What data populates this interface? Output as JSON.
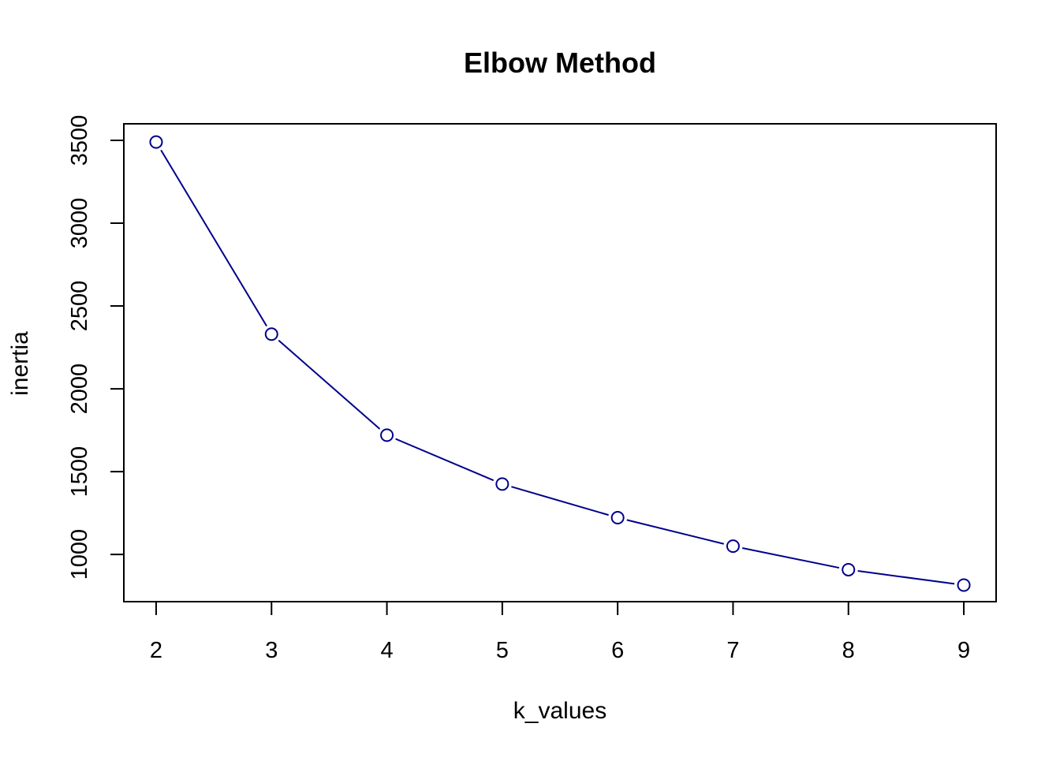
{
  "chart_data": {
    "type": "line",
    "title": "Elbow Method",
    "xlabel": "k_values",
    "ylabel": "inertia",
    "x": [
      2,
      3,
      4,
      5,
      6,
      7,
      8,
      9
    ],
    "series": [
      {
        "values": [
          3490,
          2330,
          1720,
          1425,
          1222,
          1050,
          908,
          815
        ]
      }
    ],
    "xticks": [
      2,
      3,
      4,
      5,
      6,
      7,
      8,
      9
    ],
    "yticks": [
      1000,
      1500,
      2000,
      2500,
      3000,
      3500
    ],
    "xlim": [
      1.72,
      9.28
    ],
    "ylim": [
      715,
      3600
    ],
    "grid": false,
    "marker": "open-circle",
    "line_color": "#00008B"
  }
}
